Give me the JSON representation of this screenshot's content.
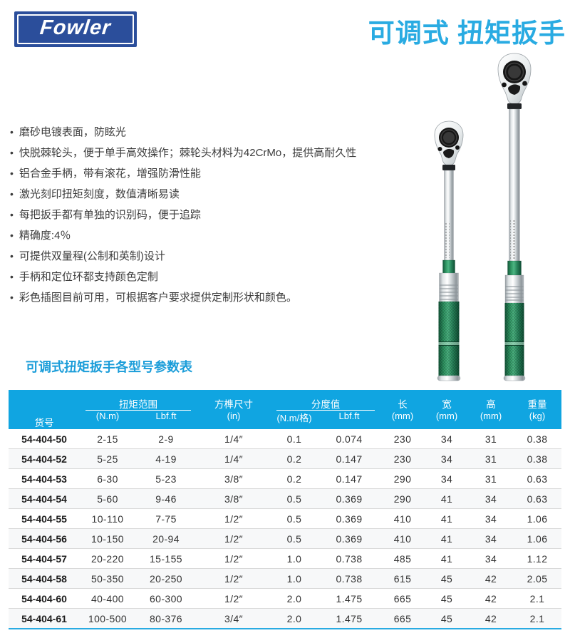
{
  "header": {
    "logo_text": "Fowler",
    "title": "可调式 扭矩扳手"
  },
  "features": {
    "items": [
      "磨砂电镀表面，防眩光",
      "快脱棘轮头，便于单手高效操作；棘轮头材料为42CrMo，提供高耐久性",
      "铝合金手柄，带有滚花，增强防滑性能",
      "激光刻印扭矩刻度，数值清晰易读",
      "每把扳手都有单独的识别码，便于追踪",
      "精确度:4％",
      "可提供双量程(公制和英制)设计",
      "手柄和定位环都支持颜色定制",
      "彩色插图目前可用，可根据客户要求提供定制形状和颜色。"
    ]
  },
  "section": {
    "title": "可调式扭矩扳手各型号参数表"
  },
  "table": {
    "columns": {
      "item_no": "货号",
      "torque_range": "扭矩范围",
      "torque_nm": "(N.m)",
      "torque_lbfft": "Lbf.ft",
      "square_drive": "方榫尺寸",
      "square_drive_unit": "(in)",
      "graduation": "分度值",
      "grad_nm": "(N.m/格)",
      "grad_lbfft": "Lbf.ft",
      "length": "长",
      "length_unit": "(mm)",
      "width": "宽",
      "width_unit": "(mm)",
      "height": "高",
      "height_unit": "(mm)",
      "weight": "重量",
      "weight_unit": "(kg)"
    },
    "rows": [
      [
        "54-404-50",
        "2-15",
        "2-9",
        "1/4″",
        "0.1",
        "0.074",
        "230",
        "34",
        "31",
        "0.38"
      ],
      [
        "54-404-52",
        "5-25",
        "4-19",
        "1/4″",
        "0.2",
        "0.147",
        "230",
        "34",
        "31",
        "0.38"
      ],
      [
        "54-404-53",
        "6-30",
        "5-23",
        "3/8″",
        "0.2",
        "0.147",
        "290",
        "34",
        "31",
        "0.63"
      ],
      [
        "54-404-54",
        "5-60",
        "9-46",
        "3/8″",
        "0.5",
        "0.369",
        "290",
        "41",
        "34",
        "0.63"
      ],
      [
        "54-404-55",
        "10-110",
        "7-75",
        "1/2″",
        "0.5",
        "0.369",
        "410",
        "41",
        "34",
        "1.06"
      ],
      [
        "54-404-56",
        "10-150",
        "20-94",
        "1/2″",
        "0.5",
        "0.369",
        "410",
        "41",
        "34",
        "1.06"
      ],
      [
        "54-404-57",
        "20-220",
        "15-155",
        "1/2″",
        "1.0",
        "0.738",
        "485",
        "41",
        "34",
        "1.12"
      ],
      [
        "54-404-58",
        "50-350",
        "20-250",
        "1/2″",
        "1.0",
        "0.738",
        "615",
        "45",
        "42",
        "2.05"
      ],
      [
        "54-404-60",
        "40-400",
        "60-300",
        "1/2″",
        "2.0",
        "1.475",
        "665",
        "45",
        "42",
        "2.1"
      ],
      [
        "54-404-61",
        "100-500",
        "80-376",
        "3/4″",
        "2.0",
        "1.475",
        "665",
        "45",
        "42",
        "2.1"
      ]
    ]
  },
  "colors": {
    "logo_blue": "#2b4e9b",
    "title_blue": "#29abe2",
    "section_title_blue": "#1b9dd9",
    "table_header_bg": "#10a5e1",
    "table_bottom_border": "#29abe2",
    "handle_green": "#2f9663"
  }
}
